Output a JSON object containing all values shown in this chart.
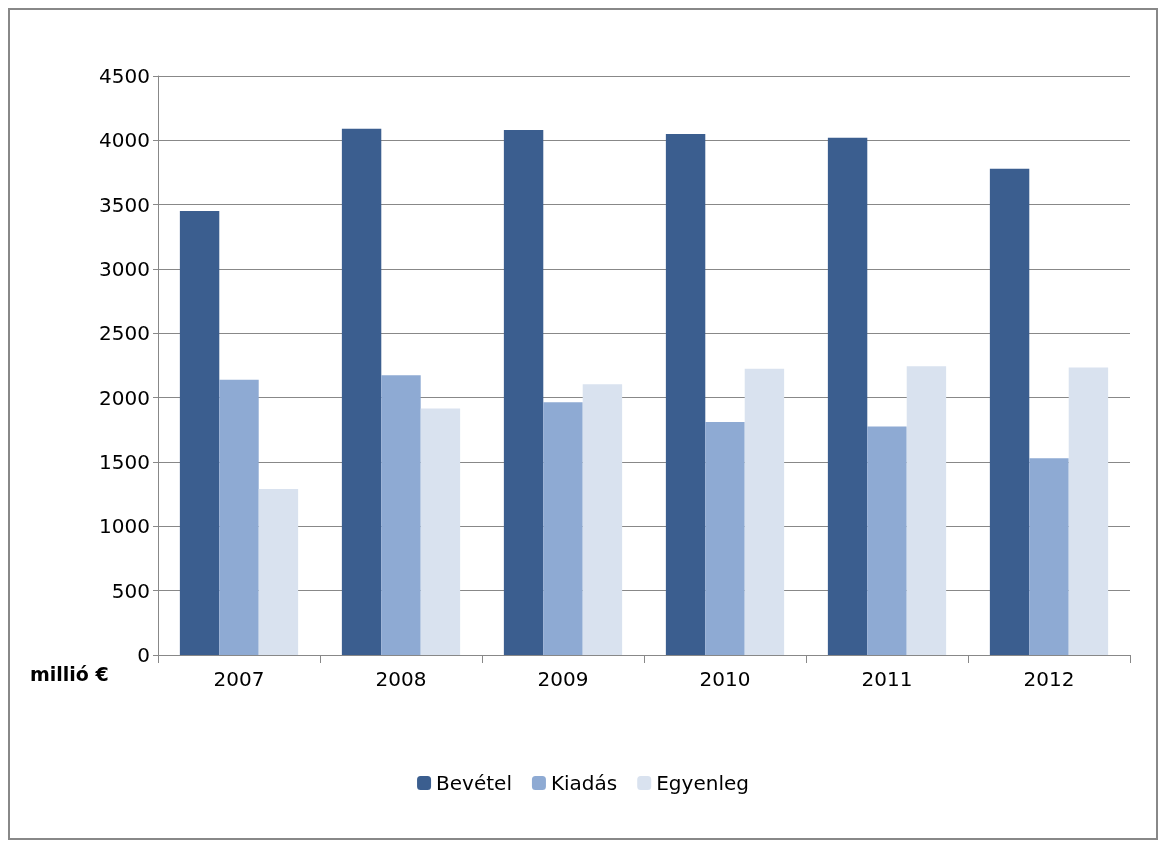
{
  "chart_data": {
    "type": "bar",
    "ylabel": "millió €",
    "categories": [
      "2007",
      "2008",
      "2009",
      "2010",
      "2011",
      "2012"
    ],
    "series": [
      {
        "name": "Bevétel",
        "color": "#3b5e8f",
        "values": [
          3450,
          4090,
          4080,
          4050,
          4020,
          3780
        ]
      },
      {
        "name": "Kiadás",
        "color": "#8eaad3",
        "values": [
          2140,
          2175,
          1965,
          1810,
          1775,
          1530
        ]
      },
      {
        "name": "Egyenleg",
        "color": "#d9e2ef",
        "values": [
          1290,
          1915,
          2105,
          2225,
          2245,
          2235
        ]
      }
    ],
    "ylim": [
      0,
      4500
    ],
    "yticks": [
      0,
      500,
      1000,
      1500,
      2000,
      2500,
      3000,
      3500,
      4000,
      4500
    ],
    "grid": "y",
    "legend": "bottom"
  }
}
